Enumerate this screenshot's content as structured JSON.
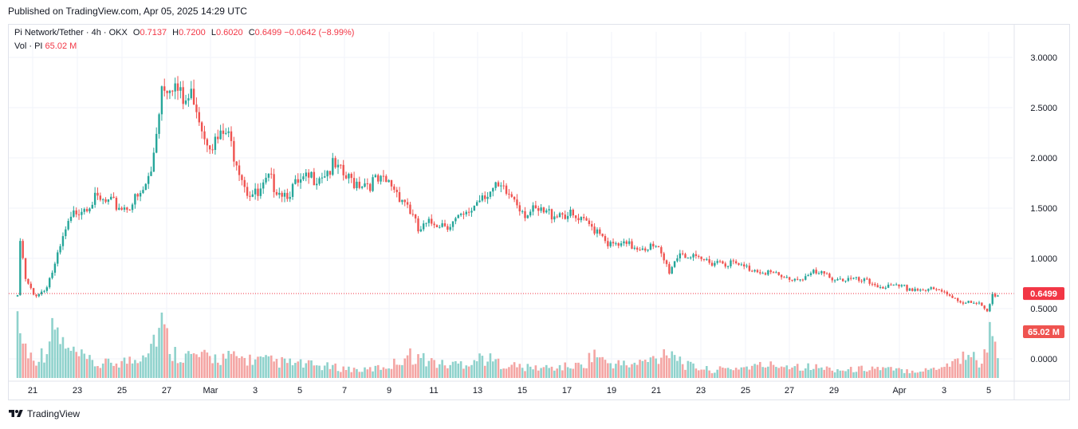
{
  "header": {
    "published": "Published on TradingView.com, Apr 05, 2025 14:29 UTC"
  },
  "legend": {
    "symbol": "Pi Network/Tether · 4h · OKX",
    "o_label": "O",
    "o": "0.7137",
    "h_label": "H",
    "h": "0.7200",
    "l_label": "L",
    "l": "0.6020",
    "c_label": "C",
    "c": "0.6499",
    "change": "−0.0642 (−8.99%)",
    "vol_label": "Vol · PI",
    "vol": "65.02 M"
  },
  "footer": {
    "brand": "TradingView"
  },
  "colors": {
    "up": "#26a69a",
    "down": "#ef5350",
    "vol_up": "#8fd2cc",
    "vol_down": "#f4a5a3",
    "price_line": "#f23645",
    "grid": "#f0f3fa"
  },
  "chart_data": {
    "type": "candlestick",
    "x_ticks": [
      "21",
      "23",
      "25",
      "27",
      "Mar",
      "3",
      "5",
      "7",
      "9",
      "11",
      "13",
      "15",
      "17",
      "19",
      "21",
      "23",
      "25",
      "27",
      "29",
      "Apr",
      "3",
      "5"
    ],
    "y_ticks": [
      "3.0000",
      "2.5000",
      "2.0000",
      "1.5000",
      "1.0000",
      "0.5000",
      "0.0000"
    ],
    "ylim": [
      0,
      3.0
    ],
    "last_price": "0.6499",
    "last_volume": "65.02 M",
    "price_anchors": [
      [
        0,
        0.62
      ],
      [
        1,
        1.2
      ],
      [
        3,
        0.8
      ],
      [
        6,
        0.65
      ],
      [
        10,
        0.7
      ],
      [
        14,
        0.95
      ],
      [
        18,
        1.3
      ],
      [
        22,
        1.52
      ],
      [
        28,
        1.62
      ],
      [
        34,
        1.58
      ],
      [
        40,
        1.55
      ],
      [
        46,
        1.65
      ],
      [
        50,
        1.9
      ],
      [
        54,
        2.8
      ],
      [
        58,
        2.85
      ],
      [
        62,
        2.6
      ],
      [
        66,
        2.7
      ],
      [
        70,
        2.3
      ],
      [
        74,
        2.2
      ],
      [
        78,
        2.3
      ],
      [
        82,
        2.05
      ],
      [
        86,
        1.72
      ],
      [
        90,
        1.65
      ],
      [
        94,
        1.82
      ],
      [
        100,
        1.7
      ],
      [
        106,
        1.78
      ],
      [
        112,
        1.88
      ],
      [
        118,
        1.95
      ],
      [
        124,
        1.82
      ],
      [
        134,
        1.8
      ],
      [
        140,
        1.78
      ],
      [
        146,
        1.58
      ],
      [
        150,
        1.3
      ],
      [
        156,
        1.4
      ],
      [
        162,
        1.38
      ],
      [
        168,
        1.45
      ],
      [
        174,
        1.7
      ],
      [
        180,
        1.72
      ],
      [
        186,
        1.65
      ],
      [
        190,
        1.5
      ],
      [
        198,
        1.48
      ],
      [
        204,
        1.5
      ],
      [
        210,
        1.4
      ],
      [
        218,
        1.32
      ],
      [
        222,
        1.15
      ],
      [
        228,
        1.15
      ],
      [
        236,
        1.15
      ],
      [
        240,
        1.1
      ],
      [
        244,
        0.9
      ],
      [
        248,
        1.1
      ],
      [
        254,
        1.0
      ],
      [
        264,
        1.0
      ],
      [
        272,
        0.93
      ],
      [
        280,
        0.9
      ],
      [
        286,
        0.82
      ],
      [
        292,
        0.82
      ],
      [
        298,
        0.87
      ],
      [
        308,
        0.82
      ],
      [
        318,
        0.78
      ],
      [
        326,
        0.73
      ],
      [
        334,
        0.72
      ],
      [
        342,
        0.7
      ],
      [
        348,
        0.67
      ],
      [
        354,
        0.58
      ],
      [
        360,
        0.55
      ],
      [
        363,
        0.49
      ],
      [
        365,
        0.68
      ],
      [
        367,
        0.65
      ]
    ],
    "volume_anchors": [
      [
        0,
        2.5
      ],
      [
        2,
        1.4
      ],
      [
        6,
        0.7
      ],
      [
        10,
        1.0
      ],
      [
        14,
        2.0
      ],
      [
        18,
        1.1
      ],
      [
        22,
        0.9
      ],
      [
        30,
        0.5
      ],
      [
        36,
        0.6
      ],
      [
        44,
        0.7
      ],
      [
        50,
        1.4
      ],
      [
        54,
        2.1
      ],
      [
        58,
        1.0
      ],
      [
        62,
        0.9
      ],
      [
        70,
        0.8
      ],
      [
        80,
        0.8
      ],
      [
        90,
        0.7
      ],
      [
        100,
        0.6
      ],
      [
        110,
        0.5
      ],
      [
        120,
        0.4
      ],
      [
        130,
        0.3
      ],
      [
        140,
        0.5
      ],
      [
        146,
        0.9
      ],
      [
        150,
        0.8
      ],
      [
        160,
        0.5
      ],
      [
        168,
        0.6
      ],
      [
        174,
        0.8
      ],
      [
        180,
        0.6
      ],
      [
        190,
        0.4
      ],
      [
        200,
        0.4
      ],
      [
        212,
        0.5
      ],
      [
        216,
        1.0
      ],
      [
        220,
        0.6
      ],
      [
        230,
        0.5
      ],
      [
        240,
        0.8
      ],
      [
        244,
        1.2
      ],
      [
        250,
        0.5
      ],
      [
        260,
        0.3
      ],
      [
        270,
        0.4
      ],
      [
        280,
        0.5
      ],
      [
        290,
        0.5
      ],
      [
        300,
        0.4
      ],
      [
        310,
        0.3
      ],
      [
        320,
        0.4
      ],
      [
        330,
        0.3
      ],
      [
        340,
        0.3
      ],
      [
        350,
        0.6
      ],
      [
        356,
        1.0
      ],
      [
        360,
        0.6
      ],
      [
        363,
        1.0
      ],
      [
        365,
        2.4
      ],
      [
        367,
        1.2
      ]
    ]
  }
}
